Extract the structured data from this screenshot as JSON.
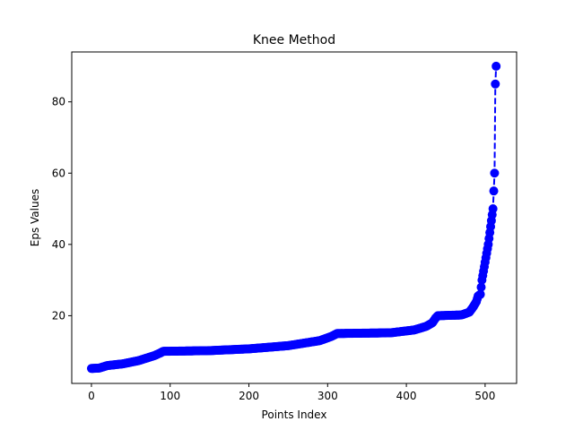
{
  "chart_data": {
    "type": "line",
    "title": "Knee Method",
    "xlabel": "Points Index",
    "ylabel": "Eps Values",
    "xlim": [
      -25,
      540
    ],
    "ylim": [
      1.0,
      94.0
    ],
    "xticks": [
      0,
      100,
      200,
      300,
      400,
      500
    ],
    "yticks": [
      20,
      40,
      60,
      80
    ],
    "grid": false,
    "style": {
      "color": "#0000ff",
      "linestyle": "dashed",
      "marker": "circle"
    },
    "series": [
      {
        "knots": [
          [
            0,
            5.2
          ],
          [
            10,
            5.3
          ],
          [
            20,
            6.0
          ],
          [
            40,
            6.5
          ],
          [
            60,
            7.4
          ],
          [
            80,
            8.8
          ],
          [
            88,
            9.6
          ],
          [
            91,
            10.0
          ],
          [
            150,
            10.2
          ],
          [
            200,
            10.7
          ],
          [
            250,
            11.6
          ],
          [
            290,
            13.0
          ],
          [
            305,
            14.2
          ],
          [
            312,
            15.0
          ],
          [
            380,
            15.2
          ],
          [
            410,
            16.0
          ],
          [
            425,
            17.0
          ],
          [
            433,
            18.0
          ],
          [
            437,
            19.3
          ],
          [
            440,
            20.0
          ],
          [
            470,
            20.2
          ],
          [
            480,
            21.0
          ],
          [
            485,
            22.5
          ],
          [
            489,
            24.0
          ],
          [
            491,
            25.5
          ],
          [
            494,
            26.0
          ],
          [
            496,
            30.0
          ],
          [
            500,
            35.0
          ],
          [
            504,
            40.0
          ],
          [
            507,
            45.0
          ],
          [
            510,
            50.0
          ],
          [
            511,
            55.0
          ],
          [
            512,
            60.0
          ],
          [
            513,
            85.0
          ],
          [
            514,
            90.0
          ]
        ]
      }
    ]
  }
}
